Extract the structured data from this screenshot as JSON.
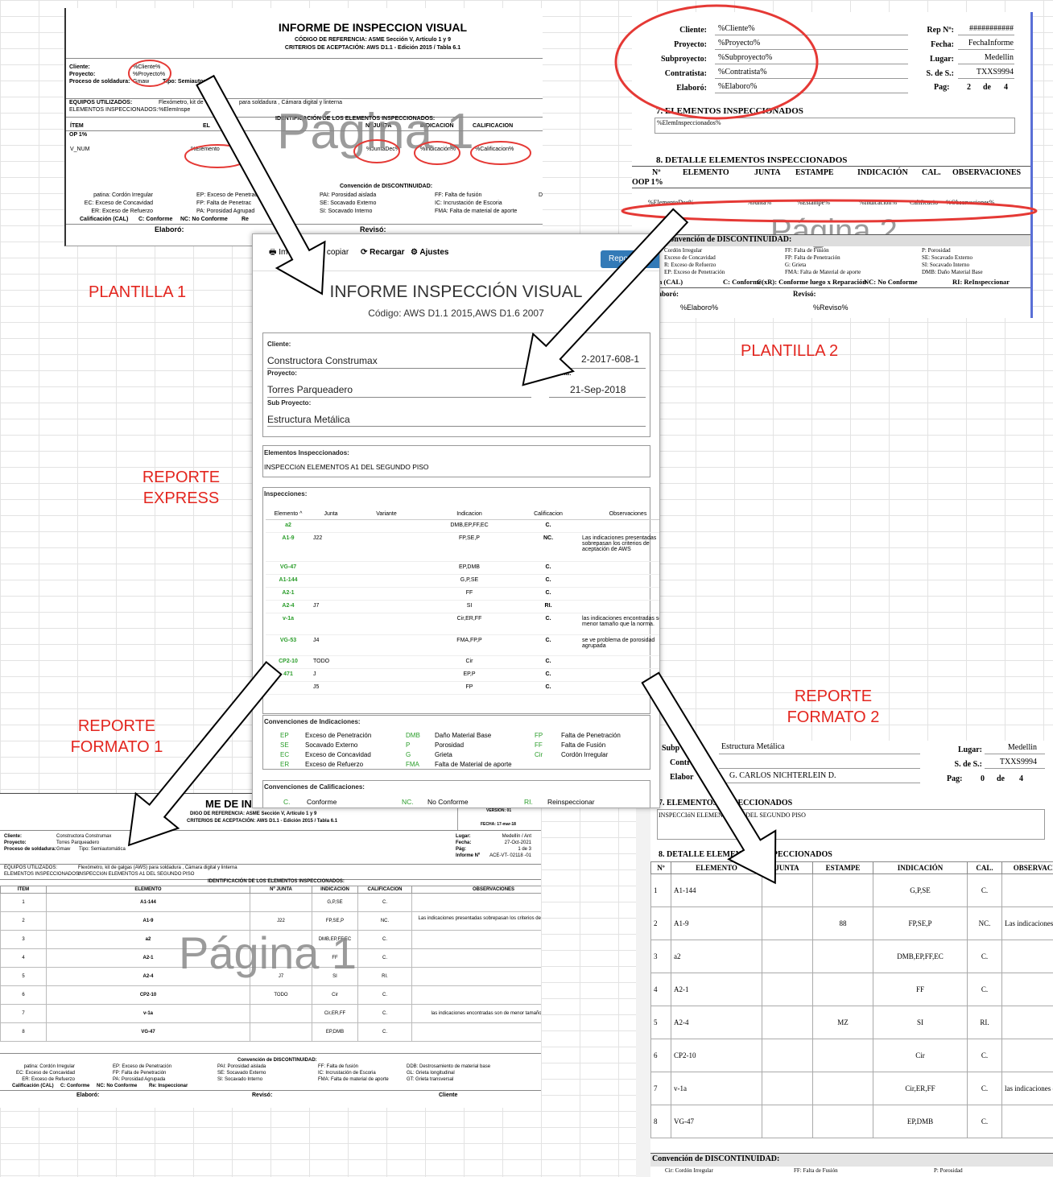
{
  "labels": {
    "plantilla1": "PLANTILLA 1",
    "plantilla2": "PLANTILLA 2",
    "express": [
      "REPORTE",
      "EXPRESS"
    ],
    "formato1": [
      "REPORTE",
      "FORMATO 1"
    ],
    "formato2": [
      "REPORTE",
      "FORMATO 2"
    ]
  },
  "plantilla1": {
    "title": "INFORME DE INSPECCION VISUAL",
    "ref": "CÓDIGO DE REFERENCIA: ASME Sección V, Artículo 1 y 9",
    "criteria": "CRITERIOS DE ACEPTACIÓN: AWS D1.1 - Edición 2015  / Tabla 6.1",
    "fields": [
      [
        "Cliente:",
        "%Cliente%"
      ],
      [
        "Proyecto:",
        "%Proyecto%"
      ],
      [
        "Proceso de soldadura:",
        "Gmaw"
      ]
    ],
    "tipo": "Tipo:  Semiautom",
    "equipos": [
      "EQUIPOS UTILIZADOS:",
      "Flexómetro, kit de",
      "para soldadura , Cámara digital y linterna"
    ],
    "elementos": [
      "ELEMENTOS INSPECCIONADOS:",
      "%ElemInspe"
    ],
    "ident": "IDENTIFICACIÓN DE LOS ELEMENTOS INSPECCIONADOS:",
    "headers": [
      "ÍTEM",
      "EL",
      "Nº JUNTA",
      "INDICACION",
      "CALIFICACION"
    ],
    "loop": "OP 1%",
    "row": [
      "V_NUM",
      "%Elemento",
      "%JuntaDec%",
      "%Indicación%",
      "%Calificacion%"
    ],
    "watermark": "Página 1",
    "convencion": "Convención de DISCONTINUIDAD:",
    "conv": [
      [
        "patina: Cordón Irregular",
        "EP: Exceso de Penetraci",
        "PAI: Porosidad aislada",
        "FF: Falta de fusión",
        "D"
      ],
      [
        "EC: Exceso de Concavidad",
        "FP: Falta de Penetrac",
        "SE: Socavado Externo",
        "IC: Incrustación de Escoria"
      ],
      [
        "ER: Exceso de Refuerzo",
        "PA: Porosidad Agrupad",
        "SI: Socavado Interno",
        "FMA: Falta de material de aporte"
      ]
    ],
    "cal": [
      "Calificación (CAL)",
      "C: Conforme",
      "NC: No Conforme",
      "Re"
    ],
    "footer": [
      "Elaboró:",
      "Revisó:"
    ]
  },
  "plantilla2": {
    "left": [
      [
        "Cliente:",
        "%Cliente%"
      ],
      [
        "Proyecto:",
        "%Proyecto%"
      ],
      [
        "Subproyecto:",
        "%Subproyecto%"
      ],
      [
        "Contratista:",
        "%Contratista%"
      ],
      [
        "Elaboró:",
        "%Elaboro%"
      ]
    ],
    "right": [
      [
        "Rep Nº:",
        "###########"
      ],
      [
        "Fecha:",
        "FechaInforme"
      ],
      [
        "Lugar:",
        "Medellin"
      ],
      [
        "S. de S.:",
        "TXXS9994"
      ]
    ],
    "pag": [
      "Pag:",
      "2",
      "de",
      "4"
    ],
    "sec7": "7. ELEMENTOS INSPECCIONADOS",
    "elem": "%ElemInspeccionados%",
    "sec8": "8. DETALLE ELEMENTOS INSPECCIONADOS",
    "headers": [
      "Nº",
      "ELEMENTO",
      "JUNTA",
      "ESTAMPE",
      "INDICACIÓN",
      "CAL.",
      "OBSERVACIONES"
    ],
    "loop": "OOP 1%",
    "row": [
      "%ElementoDec%",
      "%Junta%",
      "%Estampe%",
      "%Indicacion%",
      "Calificacio",
      "%Observaciones%"
    ],
    "watermark": "Página 2",
    "convencion": "Convención de DISCONTINUIDAD:",
    "conv": [
      [
        "Cordón Irregular",
        "FF: Falta de Fusión",
        "P: Porosidad"
      ],
      [
        "Exceso de Concavidad",
        "FP: Falta de Penetración",
        "SE: Socavado Externo"
      ],
      [
        "R: Exceso de Refuerzo",
        "G: Grieta",
        "SI: Socavado Interno"
      ],
      [
        "EP: Exceso de Penetración",
        "FMA: Falta de Material de aporte",
        "DMB: Daño Material Base"
      ]
    ],
    "cal": [
      "alificación (CAL)",
      "C: Conforme",
      "C(xR): Conforme luego x Reparación",
      "NC: No Conforme",
      "RI: ReInspeccionar"
    ],
    "footer": [
      "laboró:",
      "Revisó:"
    ],
    "footerValues": [
      "%Elaboro%",
      "%Reviso%"
    ]
  },
  "express": {
    "toolbar": [
      "Im",
      "copiar",
      "Recargar",
      "Ajustes"
    ],
    "report": "Repor",
    "title": "INFORME INSPECCIÓN VISUAL",
    "code": "Código: AWS D1.1 2015,AWS D1.6 2007",
    "clienteLabel": "Cliente:",
    "cliente": "Constructora Construmax",
    "numero": "2-2017-608-1",
    "proyectoLabel": "Proyecto:",
    "proyecto": "Torres Parqueadero",
    "fechaLabel": "Fecha:",
    "fecha": "21-Sep-2018",
    "subLabel": "Sub Proyecto:",
    "sub": "Estructura Metálica",
    "elemLabel": "Elementos Inspeccionados:",
    "elem": "INSPECCIóN ELEMENTOS A1 DEL SEGUNDO PISO",
    "inspLabel": "Inspecciones:",
    "headers": [
      "Elemento",
      "Junta",
      "Variante",
      "Indicacion",
      "Calificacion",
      "Observaciones"
    ],
    "rows": [
      [
        "a2",
        null,
        null,
        "DMB,EP,FF,EC",
        "C.",
        null
      ],
      [
        "A1-9",
        "J22",
        null,
        "FP,SE,P",
        "NC.",
        "Las indicaciones presentadas sobrepasan los criterios de aceptación de AWS"
      ],
      [
        "VG-47",
        null,
        null,
        "EP,DMB",
        "C.",
        null
      ],
      [
        "A1-144",
        null,
        null,
        "G,P,SE",
        "C.",
        null
      ],
      [
        "A2-1",
        null,
        null,
        "FF",
        "C.",
        null
      ],
      [
        "A2-4",
        "J7",
        null,
        "SI",
        "RI.",
        null
      ],
      [
        "v-1a",
        null,
        null,
        "Cir,ER,FF",
        "C.",
        "las indicaciones encontradas son de menor tamaño que la norma."
      ],
      [
        "VG-53",
        "J4",
        null,
        "FMA,FP,P",
        "C.",
        "se ve problema de porosidad agrupada"
      ],
      [
        "CP2-10",
        "TODO",
        null,
        "Cir",
        "C.",
        null
      ],
      [
        "471",
        "J",
        null,
        "EP,P",
        "C.",
        null
      ],
      [
        null,
        "J5",
        null,
        "FP",
        "C.",
        null
      ]
    ],
    "indLabel": "Convenciones de Indicaciones:",
    "ind": [
      [
        [
          "EP",
          "Exceso de Penetración"
        ],
        [
          "DMB",
          "Daño Material Base"
        ],
        [
          "FP",
          "Falta de Penetración"
        ]
      ],
      [
        [
          "SE",
          "Socavado Externo"
        ],
        [
          "P",
          "Porosidad"
        ],
        [
          "FF",
          "Falta de Fusión"
        ]
      ],
      [
        [
          "EC",
          "Exceso de Concavidad"
        ],
        [
          "G",
          "Grieta"
        ],
        [
          "Cir",
          "Cordón Irregular"
        ]
      ],
      [
        [
          "ER",
          "Exceso de Refuerzo"
        ],
        [
          "FMA",
          "Falta de Material de aporte"
        ]
      ]
    ],
    "calLabel": "Convenciones de Calificaciones:",
    "cal": [
      [
        "C.",
        "Conforme"
      ],
      [
        "NC.",
        "No Conforme"
      ],
      [
        "RI.",
        "Reinspeccionar"
      ]
    ]
  },
  "formato1": {
    "title": "ME DE IN",
    "ref": "DIGO DE REFERENCIA: ASME Sección V, Artículo 1 y 9",
    "criteria": "CRITERIOS DE ACEPTACIÓN: AWS D1.1 - Edición 2015  / Tabla 6.1",
    "version": "VERSION: 01",
    "fechaDoc": "FECHA: 17-mar-18",
    "fields": [
      [
        "Cliente:",
        "Constructora Construmax"
      ],
      [
        "Proyecto:",
        "Torres Parqueadero"
      ],
      [
        "Proceso de soldadura:",
        "Gmaw"
      ]
    ],
    "tipo": "Tipo:  Semiautomática",
    "right": [
      [
        "Lugar:",
        "Medellín / Ant"
      ],
      [
        "Fecha:",
        "27-Oct-2021"
      ],
      [
        "Pág:",
        "1 de 3"
      ],
      [
        "Informe Nº",
        "ACE-VT- 02118 -01"
      ]
    ],
    "equipos": [
      "EQUIPOS UTILIZADOS:",
      "Flexómetro, kit de galgas (AWS) para soldadura , Cámara digital y linterna"
    ],
    "elementos": [
      "ELEMENTOS INSPECCIONADOS:",
      "INSPECCIóN ELEMENTOS A1 DEL SEGUNDO PISO"
    ],
    "ident": "IDENTIFICACIÓN DE LOS ELEMENTOS INSPECCIONADOS:",
    "headers": [
      "ÍTEM",
      "ELEMENTO",
      "Nº JUNTA",
      "INDICACION",
      "CALIFICACION",
      "OBSERVACIONES"
    ],
    "rows": [
      [
        "1",
        "A1-144",
        null,
        "G,P,SE",
        "C.",
        null
      ],
      [
        "2",
        "A1-9",
        "J22",
        "FP,SE,P",
        "NC.",
        "Las indicaciones presentadas sobrepasan los criterios de aceptación de AWS<br>"
      ],
      [
        "3",
        "a2",
        null,
        "DMB,EP,FF,EC",
        "C.",
        null
      ],
      [
        "4",
        "A2-1",
        null,
        "FF",
        "C.",
        null
      ],
      [
        "5",
        "A2-4",
        "J7",
        "SI",
        "RI.",
        null
      ],
      [
        "6",
        "CP2-10",
        "TODO",
        "Cir",
        "C.",
        null
      ],
      [
        "7",
        "v-1a",
        null,
        "Cir,ER,FF",
        "C.",
        "las indicaciones encontradas son de menor tamaño que la norma."
      ],
      [
        "8",
        "VG-47",
        null,
        "EP,DMB",
        "C.",
        null
      ]
    ],
    "watermark": "Página 1",
    "convencion": "Convención de DISCONTINUIDAD:",
    "conv": [
      [
        "patina: Cordón Irregular",
        "EP: Exceso de Penetración",
        "PAI: Porosidad aislada",
        "FF: Falta de fusión",
        "DDB: Destrosamiento de material base"
      ],
      [
        "EC: Exceso de Concavidad",
        "FP: Falta de Penetración",
        "SE: Socavado Externo",
        "IC: Incrustación de Escoria",
        "GL: Grieta longitudinal"
      ],
      [
        "ER: Exceso de Refuerzo",
        "PA: Porosidad Agrupada",
        "SI: Socavado Interno",
        "FMA: Falta de material de aporte",
        "GT: Grieta transversal"
      ]
    ],
    "cal": [
      "Calificación (CAL)",
      "C: Conforme",
      "NC: No Conforme",
      "Re: Inspeccionar"
    ],
    "footer": [
      "Elaboró:",
      "Revisó:",
      "Cliente"
    ]
  },
  "formato2": {
    "left": [
      [
        "Subp",
        "Estructura Metálica"
      ],
      [
        "Contra",
        null
      ],
      [
        "Elabor",
        "G. CARLOS NICHTERLEIN D."
      ]
    ],
    "right": [
      [
        "Lugar:",
        "Medellin"
      ],
      [
        "S. de S.:",
        "TXXS9994"
      ]
    ],
    "pag": [
      "Pag:",
      "0",
      "de",
      "4"
    ],
    "sec7": "7. ELEMENTOS INSPECCIONADOS",
    "elem": "INSPECCIóN ELEMENTOS A1 DEL SEGUNDO PISO",
    "sec8": "8. DETALLE ELEMENTOS INSPECCIONADOS",
    "headers": [
      "Nº",
      "ELEMENTO",
      "JUNTA",
      "ESTAMPE",
      "INDICACIÓN",
      "CAL.",
      "OBSERVACIONES"
    ],
    "rows": [
      [
        "1",
        "A1-144",
        null,
        null,
        "G,P,SE",
        "C.",
        null
      ],
      [
        "2",
        "A1-9",
        null,
        "88",
        "FP,SE,P",
        "NC.",
        "Las indicaciones presenta"
      ],
      [
        "3",
        "a2",
        null,
        null,
        "DMB,EP,FF,EC",
        "C.",
        null
      ],
      [
        "4",
        "A2-1",
        null,
        null,
        "FF",
        "C.",
        null
      ],
      [
        "5",
        "A2-4",
        null,
        "MZ",
        "SI",
        "RI.",
        null
      ],
      [
        "6",
        "CP2-10",
        null,
        null,
        "Cir",
        "C.",
        null
      ],
      [
        "7",
        "v-1a",
        null,
        null,
        "Cir,ER,FF",
        "C.",
        "las indicaciones encontrac"
      ],
      [
        "8",
        "VG-47",
        null,
        null,
        "EP,DMB",
        "C.",
        null
      ]
    ],
    "convencion": "Convención de DISCONTINUIDAD:",
    "conv": [
      "Cir: Cordón Irregular",
      "FF: Falta de Fusión",
      "P: Porosidad"
    ]
  }
}
